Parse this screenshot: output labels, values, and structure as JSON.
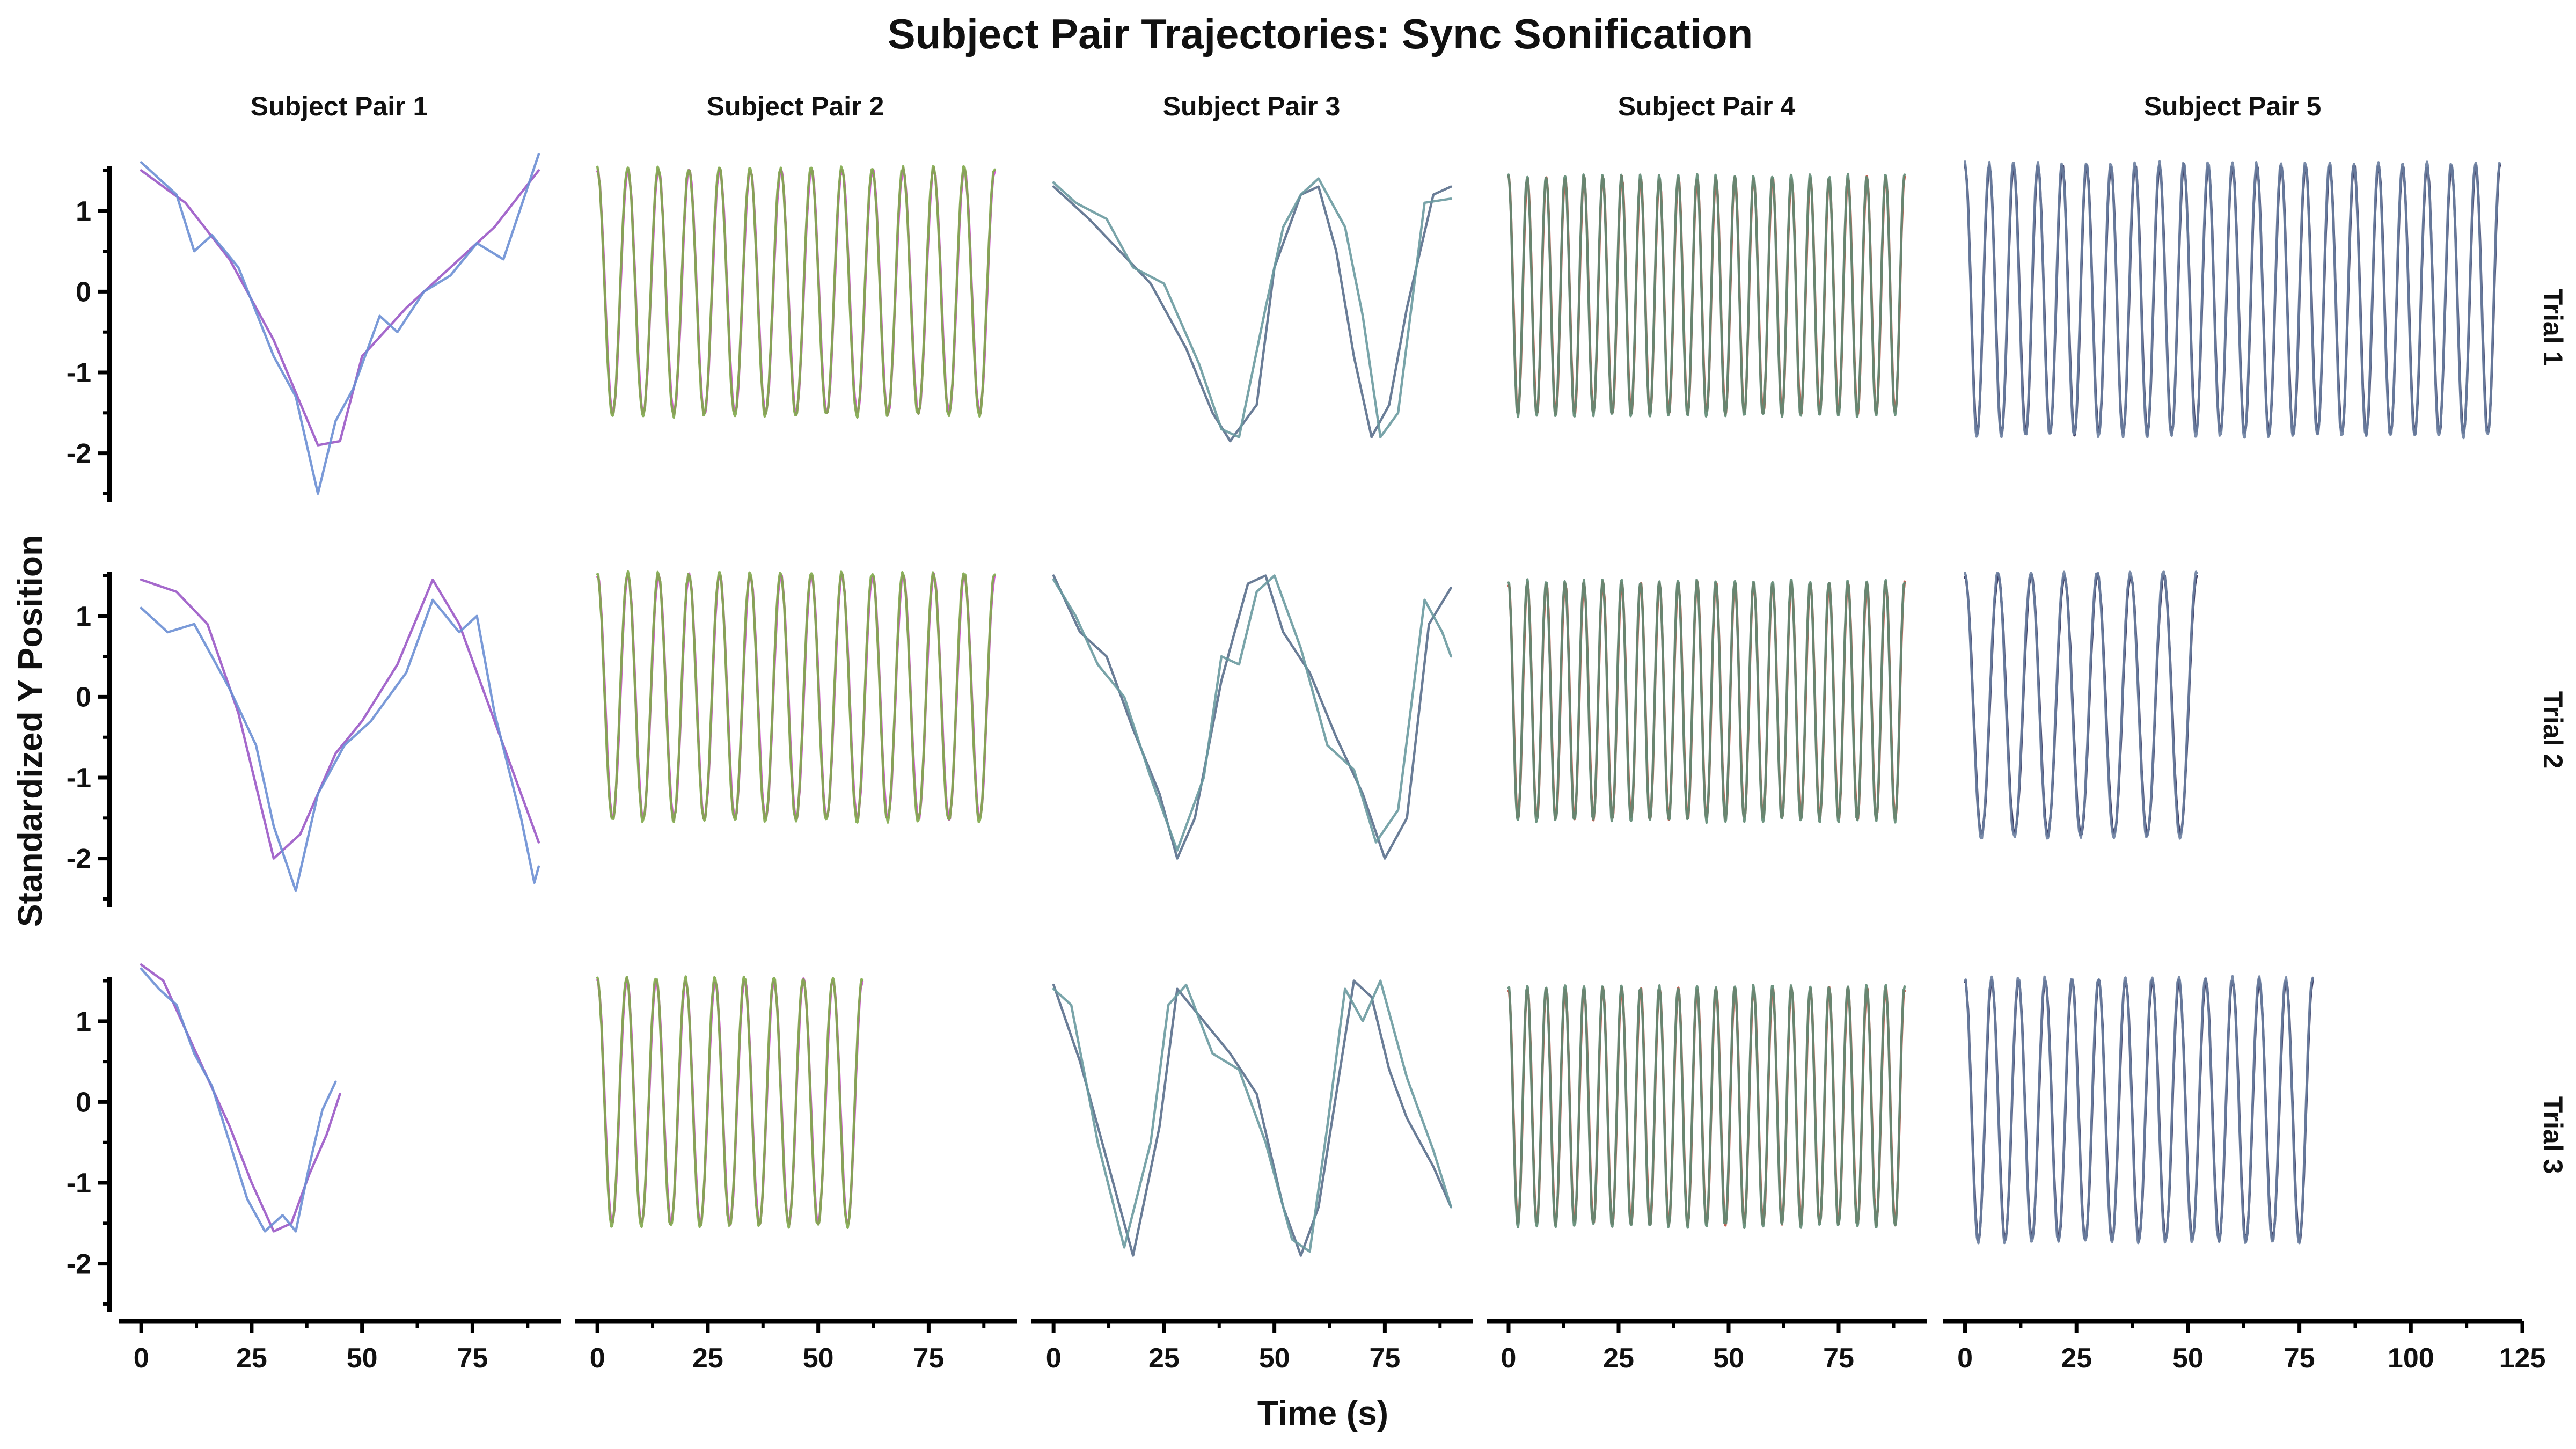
{
  "chart_data": {
    "type": "line",
    "title": "Subject Pair Trajectories: Sync Sonification",
    "xlabel": "Time (s)",
    "ylabel": "Standardized Y Position",
    "ylim": [
      -2.6,
      1.55
    ],
    "yticks": [
      1,
      0,
      -1,
      -2
    ],
    "ytick_labels": [
      "1",
      "0",
      "-1",
      "-2"
    ],
    "grid": false,
    "columns": [
      {
        "title": "Subject Pair 1",
        "xlim": [
          -5,
          95
        ],
        "xticks": [
          0,
          25,
          50,
          75
        ],
        "xtick_labels": [
          "0",
          "25",
          "50",
          "75"
        ],
        "colors": [
          "#9b59c6",
          "#6b8fd4"
        ]
      },
      {
        "title": "Subject Pair 2",
        "xlim": [
          -5,
          95
        ],
        "xticks": [
          0,
          25,
          50,
          75
        ],
        "xtick_labels": [
          "0",
          "25",
          "50",
          "75"
        ],
        "colors": [
          "#d04ad0",
          "#7fa84a"
        ]
      },
      {
        "title": "Subject Pair 3",
        "xlim": [
          -5,
          95
        ],
        "xticks": [
          0,
          25,
          50,
          75
        ],
        "xtick_labels": [
          "0",
          "25",
          "50",
          "75"
        ],
        "colors": [
          "#5a6f8c",
          "#6a9aa0"
        ]
      },
      {
        "title": "Subject Pair 4",
        "xlim": [
          -5,
          95
        ],
        "xticks": [
          0,
          25,
          50,
          75
        ],
        "xtick_labels": [
          "0",
          "25",
          "50",
          "75"
        ],
        "colors": [
          "#c44d3e",
          "#5e8a73"
        ]
      },
      {
        "title": "Subject Pair 5",
        "xlim": [
          -5,
          125
        ],
        "xticks": [
          0,
          25,
          50,
          75,
          100,
          125
        ],
        "xtick_labels": [
          "0",
          "25",
          "50",
          "75",
          "100",
          "125"
        ],
        "colors": [
          "#2a2a56",
          "#6a7ea0"
        ]
      }
    ],
    "rows": [
      "Trial 1",
      "Trial 2",
      "Trial 3"
    ],
    "panels": [
      [
        {
          "kind": "wave",
          "series": [
            {
              "x": [
                0,
                10,
                20,
                30,
                40,
                45,
                50,
                60,
                70,
                80,
                90
              ],
              "y": [
                1.5,
                1.1,
                0.4,
                -0.6,
                -1.9,
                -1.85,
                -0.8,
                -0.2,
                0.3,
                0.8,
                1.5
              ]
            },
            {
              "x": [
                0,
                8,
                12,
                16,
                22,
                30,
                35,
                40,
                44,
                48,
                54,
                58,
                64,
                70,
                76,
                82,
                90
              ],
              "y": [
                1.6,
                1.2,
                0.5,
                0.7,
                0.3,
                -0.8,
                -1.3,
                -2.5,
                -1.6,
                -1.2,
                -0.3,
                -0.5,
                0.0,
                0.2,
                0.6,
                0.4,
                1.7
              ]
            }
          ]
        },
        {
          "kind": "sine",
          "duration": 90,
          "cycles": 13,
          "amp": 1.5,
          "offset": 0,
          "phase": 0
        },
        {
          "kind": "wave",
          "series": [
            {
              "x": [
                0,
                8,
                15,
                22,
                30,
                36,
                40,
                46,
                50,
                56,
                60,
                64,
                68,
                72,
                76,
                80,
                86,
                90
              ],
              "y": [
                1.3,
                0.9,
                0.5,
                0.1,
                -0.7,
                -1.5,
                -1.85,
                -1.4,
                0.3,
                1.2,
                1.3,
                0.5,
                -0.8,
                -1.8,
                -1.4,
                -0.2,
                1.2,
                1.3
              ]
            },
            {
              "x": [
                0,
                5,
                12,
                18,
                25,
                33,
                38,
                42,
                48,
                52,
                56,
                60,
                66,
                70,
                74,
                78,
                84,
                90
              ],
              "y": [
                1.35,
                1.1,
                0.9,
                0.3,
                0.1,
                -0.9,
                -1.7,
                -1.8,
                -0.2,
                0.8,
                1.2,
                1.4,
                0.8,
                -0.3,
                -1.8,
                -1.5,
                1.1,
                1.15
              ]
            }
          ]
        },
        {
          "kind": "sine",
          "duration": 90,
          "cycles": 21,
          "amp": 1.45,
          "offset": -0.05,
          "phase": 0
        },
        {
          "kind": "sine",
          "duration": 120,
          "cycles": 22,
          "amp": 1.65,
          "offset": -0.1,
          "phase": 0
        }
      ],
      [
        {
          "kind": "wave",
          "series": [
            {
              "x": [
                0,
                8,
                15,
                22,
                30,
                36,
                44,
                50,
                58,
                66,
                72,
                80,
                90
              ],
              "y": [
                1.45,
                1.3,
                0.9,
                -0.2,
                -2.0,
                -1.7,
                -0.7,
                -0.3,
                0.4,
                1.45,
                0.9,
                -0.3,
                -1.8
              ]
            },
            {
              "x": [
                0,
                6,
                12,
                20,
                26,
                30,
                35,
                40,
                46,
                52,
                60,
                66,
                72,
                76,
                80,
                86,
                89,
                90
              ],
              "y": [
                1.1,
                0.8,
                0.9,
                0.1,
                -0.6,
                -1.6,
                -2.4,
                -1.2,
                -0.6,
                -0.3,
                0.3,
                1.2,
                0.8,
                1.0,
                -0.2,
                -1.5,
                -2.3,
                -2.1
              ]
            }
          ]
        },
        {
          "kind": "sine",
          "duration": 90,
          "cycles": 13,
          "amp": 1.5,
          "offset": 0,
          "phase": 0
        },
        {
          "kind": "wave",
          "series": [
            {
              "x": [
                0,
                6,
                12,
                18,
                24,
                28,
                32,
                38,
                44,
                48,
                52,
                58,
                64,
                70,
                75,
                80,
                85,
                90
              ],
              "y": [
                1.5,
                0.8,
                0.5,
                -0.4,
                -1.2,
                -2.0,
                -1.5,
                0.2,
                1.4,
                1.5,
                0.8,
                0.3,
                -0.5,
                -1.2,
                -2.0,
                -1.5,
                0.9,
                1.35
              ]
            },
            {
              "x": [
                0,
                5,
                10,
                16,
                22,
                28,
                34,
                38,
                42,
                46,
                50,
                56,
                62,
                68,
                73,
                78,
                84,
                88,
                90
              ],
              "y": [
                1.45,
                1.0,
                0.4,
                0.0,
                -1.0,
                -1.9,
                -1.0,
                0.5,
                0.4,
                1.3,
                1.5,
                0.6,
                -0.6,
                -0.9,
                -1.8,
                -1.4,
                1.2,
                0.8,
                0.5
              ]
            }
          ]
        },
        {
          "kind": "sine",
          "duration": 90,
          "cycles": 21,
          "amp": 1.45,
          "offset": -0.05,
          "phase": 0
        },
        {
          "kind": "sine",
          "duration": 52,
          "cycles": 7,
          "amp": 1.6,
          "offset": -0.1,
          "phase": 0
        }
      ],
      [
        {
          "kind": "wave",
          "series": [
            {
              "x": [
                0,
                5,
                10,
                15,
                20,
                25,
                30,
                34,
                38,
                42,
                45
              ],
              "y": [
                1.7,
                1.5,
                0.9,
                0.3,
                -0.3,
                -1.0,
                -1.6,
                -1.5,
                -0.9,
                -0.4,
                0.1
              ]
            },
            {
              "x": [
                0,
                4,
                8,
                12,
                16,
                20,
                24,
                28,
                32,
                35,
                38,
                41,
                44
              ],
              "y": [
                1.65,
                1.4,
                1.2,
                0.6,
                0.2,
                -0.5,
                -1.2,
                -1.6,
                -1.4,
                -1.6,
                -0.8,
                -0.1,
                0.25
              ]
            }
          ]
        },
        {
          "kind": "sine",
          "duration": 60,
          "cycles": 9,
          "amp": 1.5,
          "offset": 0,
          "phase": 0
        },
        {
          "kind": "wave",
          "series": [
            {
              "x": [
                0,
                6,
                12,
                18,
                24,
                28,
                34,
                40,
                46,
                52,
                56,
                60,
                64,
                68,
                72,
                76,
                80,
                86,
                90
              ],
              "y": [
                1.45,
                0.5,
                -0.7,
                -1.9,
                -0.3,
                1.4,
                1.0,
                0.6,
                0.1,
                -1.3,
                -1.9,
                -1.3,
                0.1,
                1.5,
                1.3,
                0.4,
                -0.2,
                -0.8,
                -1.3
              ]
            },
            {
              "x": [
                0,
                4,
                10,
                16,
                22,
                26,
                30,
                36,
                42,
                48,
                54,
                58,
                62,
                66,
                70,
                74,
                80,
                86,
                90
              ],
              "y": [
                1.4,
                1.2,
                -0.5,
                -1.8,
                -0.5,
                1.2,
                1.45,
                0.6,
                0.4,
                -0.5,
                -1.7,
                -1.85,
                -0.3,
                1.4,
                1.0,
                1.5,
                0.3,
                -0.6,
                -1.3
              ]
            }
          ]
        },
        {
          "kind": "sine",
          "duration": 90,
          "cycles": 21,
          "amp": 1.45,
          "offset": -0.05,
          "phase": 0
        },
        {
          "kind": "sine",
          "duration": 78,
          "cycles": 13,
          "amp": 1.6,
          "offset": -0.1,
          "phase": 0
        }
      ]
    ]
  }
}
